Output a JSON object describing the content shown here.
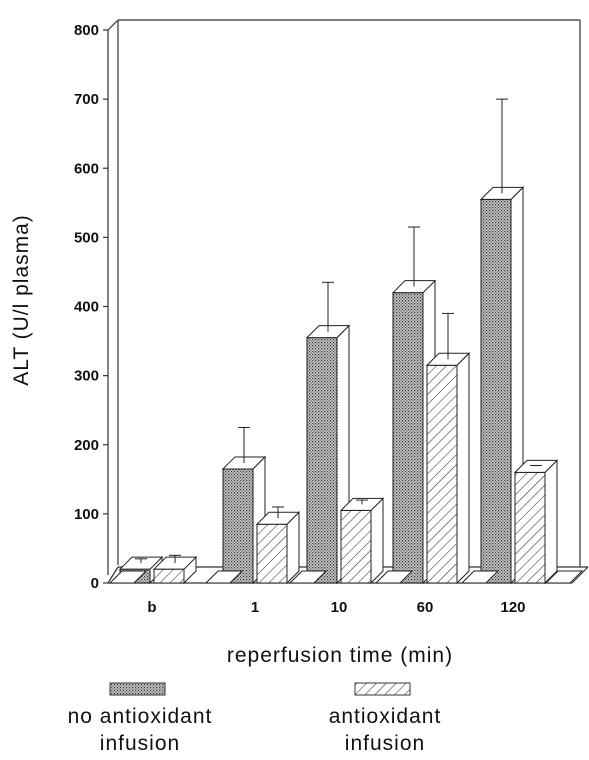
{
  "chart_data": {
    "type": "bar",
    "title": "",
    "xlabel": "reperfusion time (min)",
    "ylabel": "ALT (U/l plasma)",
    "ylim": [
      0,
      800
    ],
    "yticks": [
      0,
      100,
      200,
      300,
      400,
      500,
      600,
      700,
      800
    ],
    "categories": [
      "b",
      "1",
      "10",
      "60",
      "120"
    ],
    "series": [
      {
        "name": "no antioxidant infusion",
        "name_lines": [
          "no antioxidant",
          "infusion"
        ],
        "pattern": "dotted",
        "values": [
          20,
          165,
          355,
          420,
          555
        ],
        "errors": [
          15,
          60,
          80,
          95,
          145
        ]
      },
      {
        "name": "antioxidant infusion",
        "name_lines": [
          "antioxidant",
          "infusion"
        ],
        "pattern": "hatched",
        "values": [
          20,
          85,
          105,
          315,
          160
        ],
        "errors": [
          20,
          25,
          15,
          75,
          10
        ]
      }
    ],
    "legend_position": "bottom",
    "grid": false,
    "style": "3d-bars"
  }
}
